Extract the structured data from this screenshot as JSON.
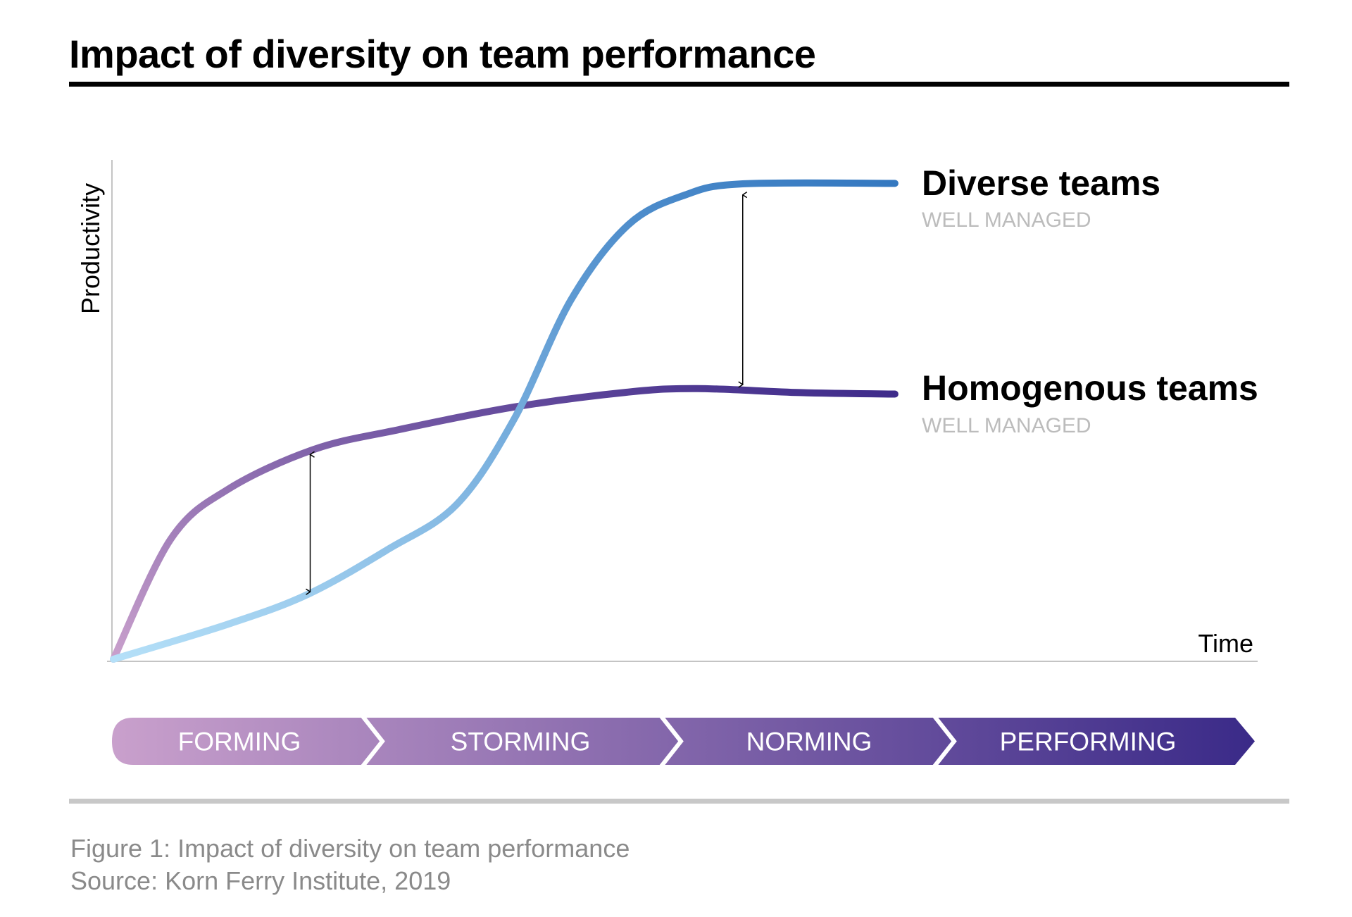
{
  "chart_data": {
    "type": "line",
    "title": "Impact of diversity on team performance",
    "xlabel": "Time",
    "ylabel": "Productivity",
    "xlim": [
      0,
      100
    ],
    "ylim": [
      0,
      100
    ],
    "grid": false,
    "series": [
      {
        "name": "Diverse teams",
        "sublabel": "WELL MANAGED",
        "color_start": "#b5e0f8",
        "color_end": "#3478c0",
        "points": [
          [
            0,
            0
          ],
          [
            10,
            7
          ],
          [
            17,
            13
          ],
          [
            24,
            22
          ],
          [
            30,
            31
          ],
          [
            35,
            48
          ],
          [
            40,
            72
          ],
          [
            45,
            87
          ],
          [
            50,
            93
          ],
          [
            55,
            95.2
          ],
          [
            68.3,
            95.3
          ]
        ]
      },
      {
        "name": "Homogenous teams",
        "sublabel": "WELL MANAGED",
        "color_start": "#c9a0cc",
        "color_end": "#3d2a8a",
        "points": [
          [
            0,
            0
          ],
          [
            5,
            24
          ],
          [
            10,
            34
          ],
          [
            17.5,
            42
          ],
          [
            25,
            46
          ],
          [
            35,
            50.5
          ],
          [
            45,
            53.5
          ],
          [
            51,
            54.2
          ],
          [
            60,
            53.4
          ],
          [
            68.3,
            53.1
          ]
        ]
      }
    ],
    "annotations": [
      {
        "type": "double-arrow",
        "x": 17.2,
        "y_from": 13.5,
        "y_to": 41
      },
      {
        "type": "double-arrow",
        "x": 55,
        "y_from": 55,
        "y_to": 93
      }
    ],
    "stages": [
      "FORMING",
      "STORMING",
      "NORMING",
      "PERFORMING"
    ],
    "stage_colors": [
      "#c9a0cc",
      "#3a2a88"
    ]
  },
  "caption": {
    "line1": "Figure 1: Impact of diversity on team performance",
    "line2": "Source: Korn Ferry Institute, 2019"
  }
}
